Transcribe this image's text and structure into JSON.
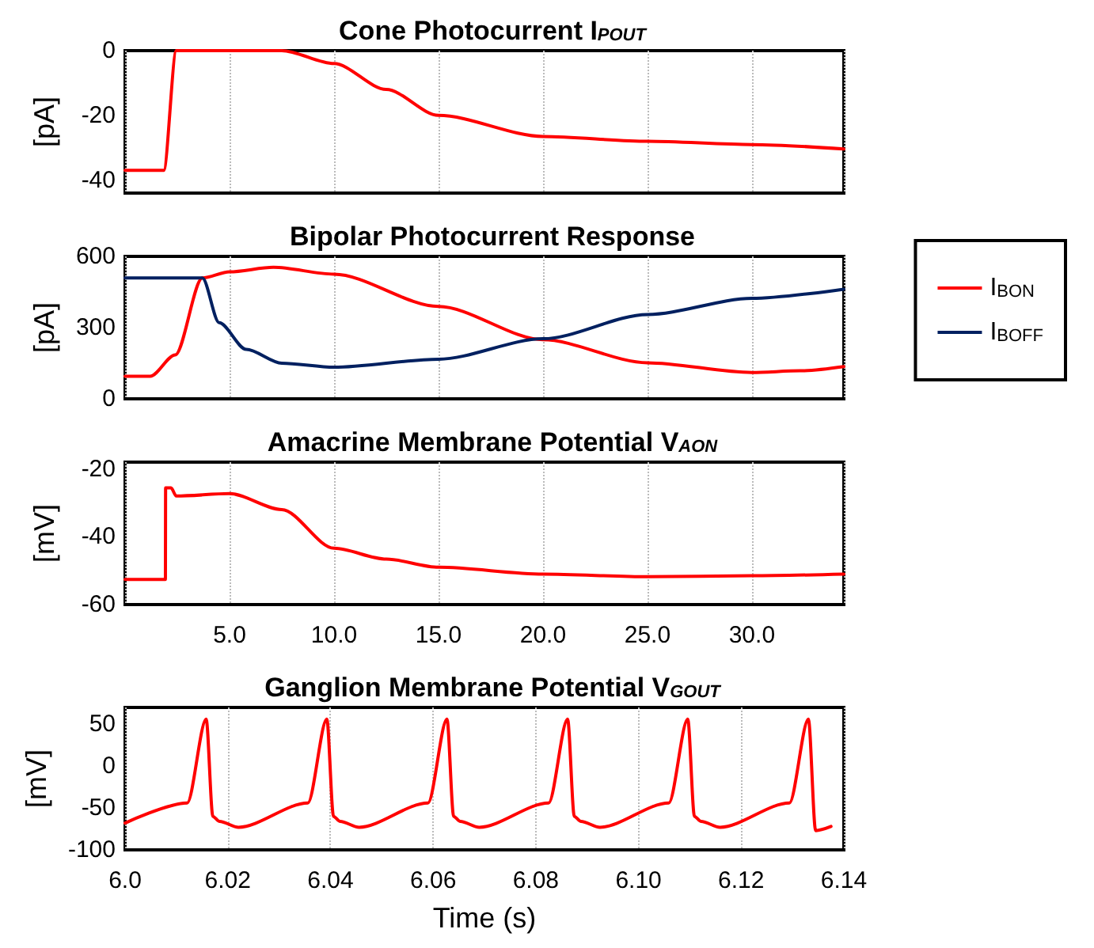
{
  "chart_data": [
    {
      "type": "line",
      "title": "Cone Photocurrent I$_{POUT}$",
      "ylabel": "[pA]",
      "xlim": [
        0,
        34.4
      ],
      "xticks": [
        5,
        10,
        15,
        20,
        25,
        30
      ],
      "ylim": [
        -44,
        0
      ],
      "yticks": [
        -40,
        -20,
        0
      ],
      "grid": "x",
      "tick_labels": "y",
      "legend": false,
      "series": [
        {
          "color": "#ff0000",
          "x": [
            0,
            1.85,
            2.45,
            7.5,
            10,
            12.5,
            15,
            20,
            25,
            30,
            34.4
          ],
          "values": [
            -37,
            -37,
            0,
            0,
            -4,
            -12,
            -20,
            -26.5,
            -28,
            -29,
            -30.4
          ]
        }
      ]
    },
    {
      "type": "line",
      "title": "Bipolar Photocurrent Response",
      "ylabel": "[pA]",
      "xlim": [
        0,
        34.4
      ],
      "xticks": [
        5,
        10,
        15,
        20,
        25,
        30
      ],
      "ylim": [
        0,
        600
      ],
      "yticks": [
        0,
        300,
        600
      ],
      "grid": "x",
      "tick_labels": "y",
      "legend": "right",
      "series": [
        {
          "name": "I$_{BON}$",
          "color": "#ff0000",
          "x": [
            0,
            1.2,
            2.4,
            3.7,
            5,
            7.1,
            10,
            15,
            20,
            25,
            30,
            32.3,
            34.4
          ],
          "values": [
            95,
            95,
            185,
            509,
            535,
            554,
            525,
            389,
            249,
            152,
            111,
            118,
            136
          ]
        },
        {
          "name": "I$_{BOFF}$",
          "color": "#002060",
          "x": [
            0,
            3.7,
            4.5,
            5.8,
            7.5,
            10,
            15,
            20,
            25,
            30,
            34.4
          ],
          "values": [
            509,
            509,
            321,
            208,
            150,
            133,
            167,
            253,
            355,
            423,
            462
          ]
        }
      ]
    },
    {
      "type": "line",
      "title": "Amacrine Membrane Potential V$_{AON}$",
      "ylabel": "[mV]",
      "xlim": [
        0,
        34.4
      ],
      "xticks": [
        {
          "value": 5,
          "label": "5.0"
        },
        {
          "value": 10,
          "label": "10.0"
        },
        {
          "value": 15,
          "label": "15.0"
        },
        {
          "value": 20,
          "label": "20.0"
        },
        {
          "value": 25,
          "label": "25.0"
        },
        {
          "value": 30,
          "label": "30.0"
        }
      ],
      "ylim": [
        -60,
        -18
      ],
      "yticks": [
        -60,
        -40,
        -20
      ],
      "grid": "x",
      "legend": false,
      "series": [
        {
          "color": "#ff0000",
          "x": [
            0,
            1.93,
            1.94,
            2.2,
            2.45,
            5,
            7.5,
            10,
            12.5,
            15,
            20,
            25,
            30,
            34.4
          ],
          "values": [
            -52.6,
            -52.6,
            -25.6,
            -25.6,
            -28,
            -27.3,
            -32,
            -43.4,
            -46.6,
            -49,
            -51,
            -51.8,
            -51.5,
            -51
          ]
        }
      ]
    },
    {
      "type": "line",
      "title": "Ganglion Membrane Potential V$_{GOUT}$",
      "ylabel": "[mV]",
      "xlabel": "Time (s)",
      "xlim": [
        6.0,
        6.14
      ],
      "xticks": [
        {
          "value": 6.0,
          "label": "6.0"
        },
        {
          "value": 6.02,
          "label": "6.02"
        },
        {
          "value": 6.04,
          "label": "6.04"
        },
        {
          "value": 6.06,
          "label": "6.06"
        },
        {
          "value": 6.08,
          "label": "6.08"
        },
        {
          "value": 6.1,
          "label": "6.10"
        },
        {
          "value": 6.12,
          "label": "6.12"
        },
        {
          "value": 6.14,
          "label": "6.14"
        }
      ],
      "ylim": [
        -100,
        70
      ],
      "yticks": [
        -100,
        -50,
        0,
        50
      ],
      "grid": "x",
      "legend": false,
      "series": [
        {
          "color": "#ff0000",
          "x": [
            6.0,
            6.0121,
            6.0158,
            6.0171,
            6.0184,
            6.0221,
            6.0356,
            6.0393,
            6.0406,
            6.0419,
            6.0456,
            6.059,
            6.0627,
            6.064,
            6.0653,
            6.069,
            6.0825,
            6.0862,
            6.0875,
            6.0888,
            6.0925,
            6.1059,
            6.1096,
            6.1109,
            6.1122,
            6.1159,
            6.1294,
            6.1331,
            6.1345,
            6.1375
          ],
          "values": [
            -68,
            -44,
            56,
            -60,
            -66,
            -73,
            -44,
            56,
            -60,
            -66,
            -73,
            -44,
            56,
            -60,
            -66,
            -73,
            -44,
            56,
            -60,
            -66,
            -73,
            -44,
            56,
            -60,
            -66,
            -73,
            -44,
            56,
            -77,
            -72
          ]
        }
      ]
    }
  ]
}
